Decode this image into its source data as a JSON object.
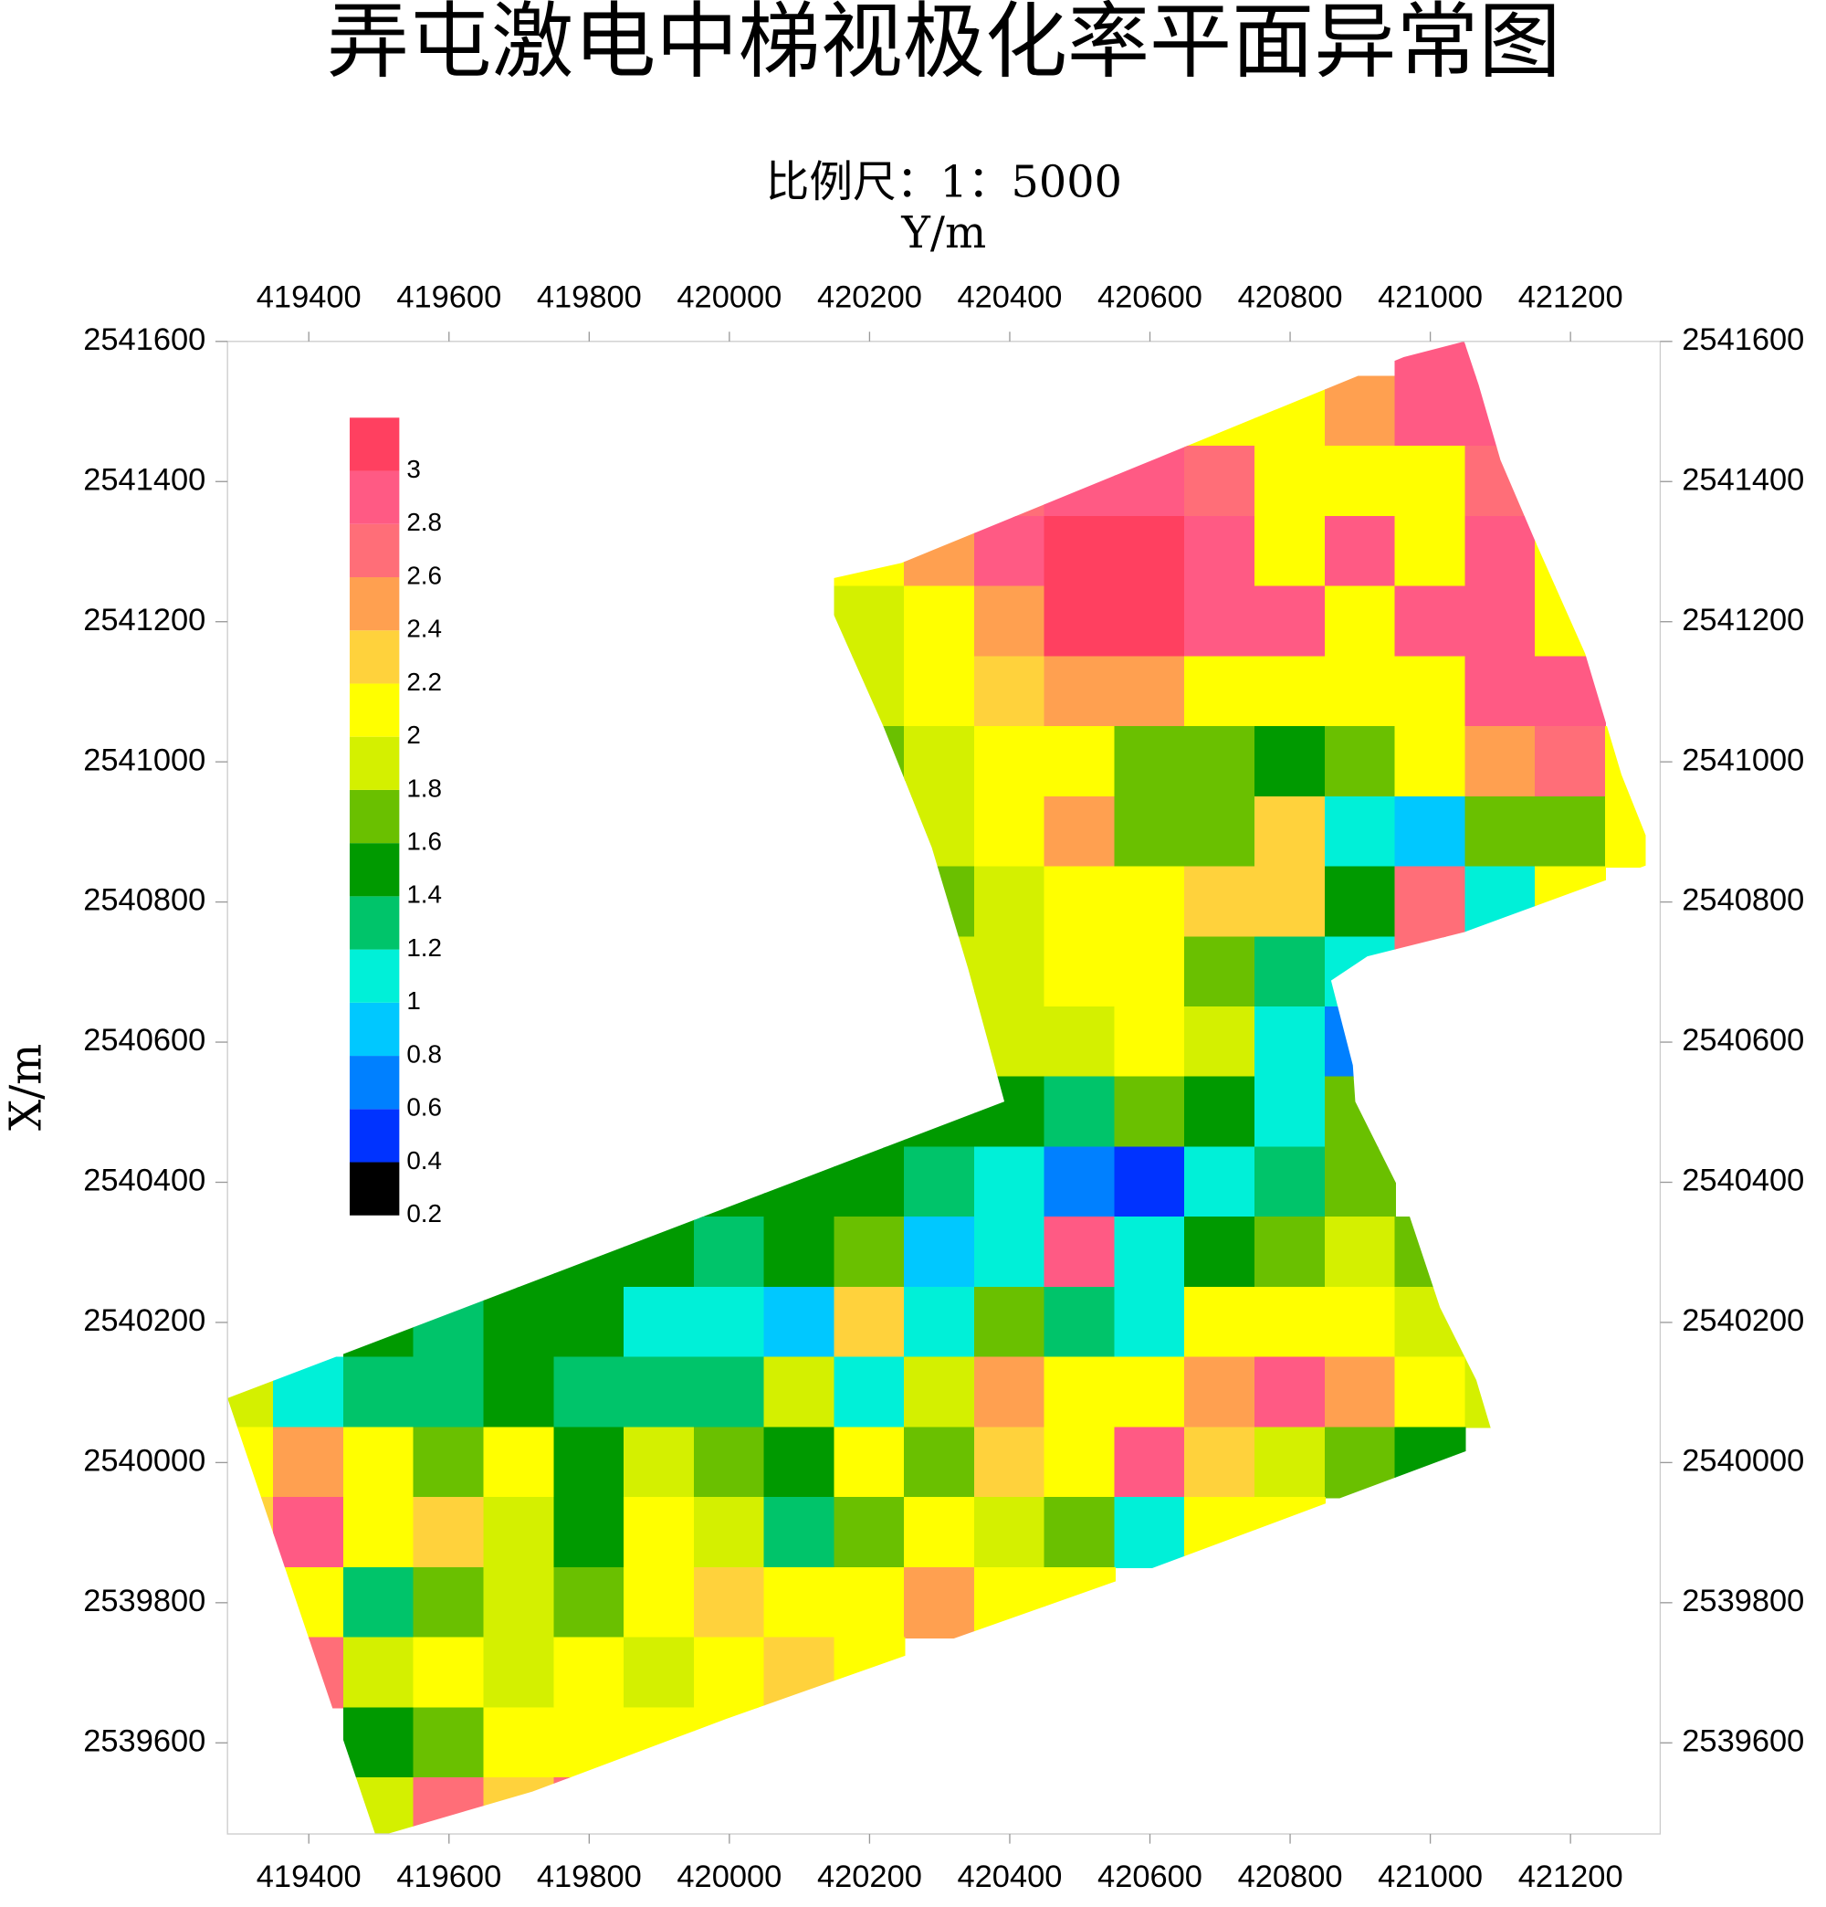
{
  "chart_data": {
    "type": "heatmap",
    "title": "弄屯激电中梯视极化率平面异常图",
    "subtitle": "比例尺：1：5000",
    "x_label": "Y/m",
    "y_label": "X/m",
    "xlim": [
      419284,
      421328
    ],
    "ylim": [
      2539470,
      2541600
    ],
    "xticks": [
      419400,
      419600,
      419800,
      420000,
      420200,
      420400,
      420600,
      420800,
      421000,
      421200
    ],
    "yticks": [
      2539600,
      2539800,
      2540000,
      2540200,
      2540400,
      2540600,
      2540800,
      2541000,
      2541200,
      2541400,
      2541600
    ],
    "x": [
      419300,
      419400,
      419500,
      419600,
      419700,
      419800,
      419900,
      420000,
      420100,
      420200,
      420300,
      420400,
      420500,
      420600,
      420700,
      420800,
      420900,
      421000,
      421100,
      421200,
      421300
    ],
    "y": [
      2541600,
      2541500,
      2541400,
      2541300,
      2541200,
      2541100,
      2541000,
      2540900,
      2540800,
      2540700,
      2540600,
      2540500,
      2540400,
      2540300,
      2540200,
      2540100,
      2540000,
      2539900,
      2539800,
      2539700,
      2539600,
      2539500
    ],
    "values": [
      [
        null,
        null,
        null,
        null,
        null,
        null,
        null,
        null,
        null,
        null,
        null,
        null,
        null,
        null,
        null,
        null,
        null,
        2.9,
        2.9,
        null,
        null
      ],
      [
        null,
        null,
        null,
        null,
        null,
        null,
        null,
        null,
        null,
        null,
        null,
        null,
        null,
        null,
        2.1,
        2.0,
        2.5,
        2.8,
        2.9,
        null,
        null
      ],
      [
        null,
        null,
        null,
        null,
        null,
        null,
        null,
        null,
        null,
        null,
        null,
        2.7,
        2.9,
        2.9,
        2.7,
        2.1,
        2.0,
        2.1,
        2.7,
        null,
        null
      ],
      [
        null,
        null,
        null,
        null,
        null,
        null,
        null,
        null,
        null,
        2.0,
        2.5,
        2.8,
        3.1,
        3.1,
        2.8,
        2.1,
        2.8,
        2.0,
        2.9,
        2.1,
        null
      ],
      [
        null,
        null,
        null,
        null,
        null,
        null,
        null,
        null,
        null,
        1.8,
        2.1,
        2.4,
        3.1,
        3.1,
        2.9,
        2.8,
        2.0,
        2.8,
        2.8,
        2.1,
        null
      ],
      [
        null,
        null,
        null,
        null,
        null,
        null,
        null,
        null,
        null,
        1.9,
        2.1,
        2.2,
        2.5,
        2.4,
        2.0,
        2.0,
        2.0,
        2.0,
        2.8,
        2.9,
        null
      ],
      [
        null,
        null,
        null,
        null,
        null,
        null,
        null,
        null,
        null,
        1.7,
        1.9,
        2.1,
        2.0,
        1.7,
        1.7,
        1.5,
        1.6,
        2.0,
        2.5,
        2.7,
        2.1
      ],
      [
        null,
        null,
        null,
        null,
        null,
        null,
        null,
        null,
        null,
        null,
        1.9,
        2.1,
        2.4,
        1.7,
        1.6,
        2.3,
        1.0,
        0.9,
        1.6,
        1.7,
        2.0
      ],
      [
        null,
        null,
        null,
        null,
        null,
        null,
        null,
        null,
        null,
        null,
        1.6,
        1.9,
        2.1,
        2.1,
        2.3,
        2.3,
        1.5,
        2.7,
        1.1,
        2.0,
        null
      ],
      [
        null,
        null,
        null,
        null,
        null,
        null,
        null,
        null,
        null,
        null,
        1.8,
        1.9,
        2.1,
        2.1,
        1.6,
        1.2,
        1.0,
        2.7,
        null,
        null,
        null
      ],
      [
        null,
        null,
        null,
        null,
        null,
        null,
        null,
        null,
        null,
        null,
        null,
        1.9,
        1.9,
        2.0,
        1.8,
        1.0,
        0.7,
        null,
        null,
        null,
        null
      ],
      [
        null,
        null,
        null,
        null,
        null,
        null,
        null,
        null,
        null,
        1.5,
        1.5,
        1.5,
        1.2,
        1.6,
        1.5,
        1.1,
        1.6,
        null,
        null,
        null,
        null
      ],
      [
        null,
        null,
        null,
        null,
        null,
        null,
        null,
        1.5,
        1.5,
        1.5,
        1.3,
        1.1,
        0.7,
        0.5,
        1.1,
        1.3,
        1.6,
        null,
        null,
        null,
        null
      ],
      [
        null,
        null,
        null,
        null,
        1.5,
        1.5,
        1.5,
        1.3,
        1.5,
        1.6,
        0.9,
        1.1,
        2.8,
        1.0,
        1.4,
        1.6,
        1.9,
        1.6,
        null,
        null,
        null
      ],
      [
        null,
        null,
        1.5,
        1.3,
        1.5,
        1.5,
        1.1,
        1.1,
        0.9,
        2.3,
        1.1,
        1.6,
        1.3,
        1.1,
        2.1,
        2.1,
        2.0,
        1.8,
        null,
        null,
        null
      ],
      [
        1.9,
        1.1,
        1.3,
        1.2,
        1.5,
        1.3,
        1.3,
        1.3,
        1.9,
        1.1,
        1.9,
        2.4,
        2.1,
        2.1,
        2.4,
        2.8,
        2.4,
        2.0,
        1.9,
        null,
        null
      ],
      [
        2.1,
        2.4,
        2.1,
        1.7,
        2.1,
        1.5,
        1.9,
        1.6,
        1.5,
        2.0,
        1.7,
        2.3,
        2.1,
        2.8,
        2.2,
        1.9,
        1.7,
        1.5,
        null,
        null,
        null
      ],
      [
        2.2,
        2.8,
        2.0,
        2.3,
        1.9,
        1.5,
        2.1,
        1.9,
        1.3,
        1.6,
        2.1,
        1.9,
        1.7,
        1.1,
        2.1,
        2.0,
        null,
        null,
        null,
        null,
        null
      ],
      [
        null,
        2.0,
        1.3,
        1.7,
        1.8,
        1.6,
        2.1,
        2.2,
        2.0,
        2.1,
        2.4,
        2.0,
        2.0,
        null,
        null,
        null,
        null,
        null,
        null,
        null,
        null
      ],
      [
        null,
        2.7,
        1.8,
        2.0,
        1.9,
        2.1,
        1.9,
        2.1,
        2.2,
        2.0,
        null,
        null,
        null,
        null,
        null,
        null,
        null,
        null,
        null,
        null,
        null
      ],
      [
        null,
        null,
        1.5,
        1.6,
        2.1,
        2.1,
        2.0,
        2.0,
        null,
        null,
        null,
        null,
        null,
        null,
        null,
        null,
        null,
        null,
        null,
        null,
        null
      ],
      [
        null,
        null,
        1.9,
        2.7,
        2.3,
        2.6,
        null,
        null,
        null,
        null,
        null,
        null,
        null,
        null,
        null,
        null,
        null,
        null,
        null,
        null,
        null
      ]
    ],
    "colorbar": {
      "lim": [
        0.2,
        3.2
      ],
      "ticks": [
        0.2,
        0.4,
        0.6,
        0.8,
        1,
        1.2,
        1.4,
        1.6,
        1.8,
        2,
        2.2,
        2.4,
        2.6,
        2.8,
        3
      ],
      "colors": [
        "#000000",
        "#0033ff",
        "#0080ff",
        "#00c8ff",
        "#00f0d8",
        "#00c46a",
        "#009a00",
        "#6ac000",
        "#d4f000",
        "#ffff00",
        "#ffd23c",
        "#ffa050",
        "#ff6e78",
        "#ff5a84",
        "#ff4060"
      ]
    }
  }
}
